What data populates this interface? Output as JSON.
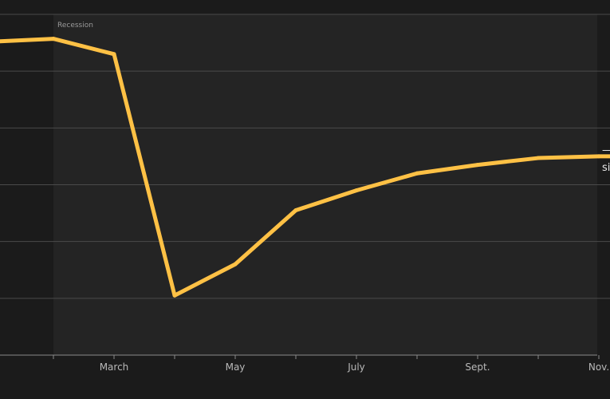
{
  "chart_data": {
    "type": "line",
    "title": "",
    "xlabel": "",
    "ylabel": "",
    "x_ticks": [
      "March",
      "May",
      "July",
      "Sept.",
      "Nov."
    ],
    "shaded_region": {
      "label": "Recession",
      "x_start": 0,
      "x_end": 1
    },
    "end_annotation": [
      "—",
      "si"
    ],
    "ylim": [
      0,
      6
    ],
    "grid": true,
    "series": [
      {
        "color": "#ffc145",
        "x": [
          0,
          1,
          2,
          3,
          4,
          5,
          6,
          7,
          8,
          9,
          10,
          11
        ],
        "y": [
          5.52,
          5.57,
          5.3,
          1.05,
          1.6,
          2.55,
          2.9,
          3.2,
          3.35,
          3.47,
          3.5,
          3.5
        ]
      }
    ]
  },
  "colors": {
    "background": "#1b1b1b",
    "plot_background": "#242424",
    "recession_shade": "#1b1b1b",
    "grid": "#4a4a4a",
    "axis": "#8a8a8a",
    "line": "#ffc145"
  }
}
